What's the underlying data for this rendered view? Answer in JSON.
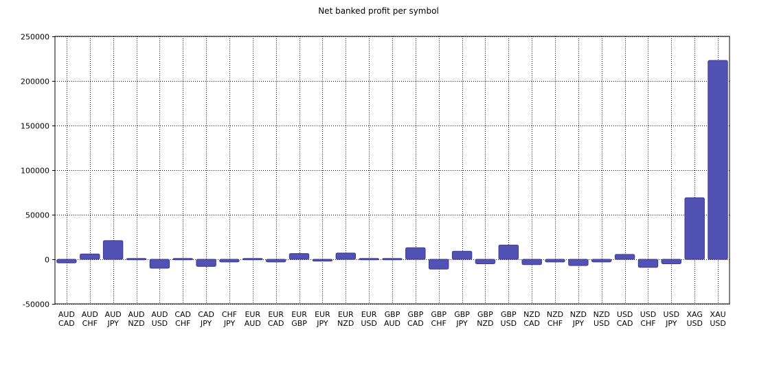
{
  "chart_data": {
    "type": "bar",
    "title": "Net banked profit per symbol",
    "xlabel": "",
    "ylabel": "",
    "ylim": [
      -50000,
      250000
    ],
    "yticks": [
      -50000,
      0,
      50000,
      100000,
      150000,
      200000,
      250000
    ],
    "yticklabels": [
      "-50000",
      "0",
      "50000",
      "100000",
      "150000",
      "200000",
      "250000"
    ],
    "grid": true,
    "legend": "none",
    "bar_color": "#5252b5",
    "bar_edge_color": "#3a3a8c",
    "categories": [
      [
        "AUD",
        "CAD"
      ],
      [
        "AUD",
        "CHF"
      ],
      [
        "AUD",
        "JPY"
      ],
      [
        "AUD",
        "NZD"
      ],
      [
        "AUD",
        "USD"
      ],
      [
        "CAD",
        "CHF"
      ],
      [
        "CAD",
        "JPY"
      ],
      [
        "CHF",
        "JPY"
      ],
      [
        "EUR",
        "AUD"
      ],
      [
        "EUR",
        "CAD"
      ],
      [
        "EUR",
        "GBP"
      ],
      [
        "EUR",
        "JPY"
      ],
      [
        "EUR",
        "NZD"
      ],
      [
        "EUR",
        "USD"
      ],
      [
        "GBP",
        "AUD"
      ],
      [
        "GBP",
        "CAD"
      ],
      [
        "GBP",
        "CHF"
      ],
      [
        "GBP",
        "JPY"
      ],
      [
        "GBP",
        "NZD"
      ],
      [
        "GBP",
        "USD"
      ],
      [
        "NZD",
        "CAD"
      ],
      [
        "NZD",
        "CHF"
      ],
      [
        "NZD",
        "JPY"
      ],
      [
        "NZD",
        "USD"
      ],
      [
        "USD",
        "CAD"
      ],
      [
        "USD",
        "CHF"
      ],
      [
        "USD",
        "JPY"
      ],
      [
        "XAG",
        "USD"
      ],
      [
        "XAU",
        "USD"
      ]
    ],
    "values": [
      -4000,
      6000,
      21000,
      1000,
      -10000,
      1000,
      -8000,
      -3000,
      1000,
      -3000,
      6500,
      -2000,
      7000,
      1000,
      1000,
      13000,
      -11000,
      9000,
      -5000,
      16000,
      -6000,
      -3000,
      -7000,
      -3000,
      5500,
      -9000,
      -5000,
      69000,
      223000
    ]
  }
}
